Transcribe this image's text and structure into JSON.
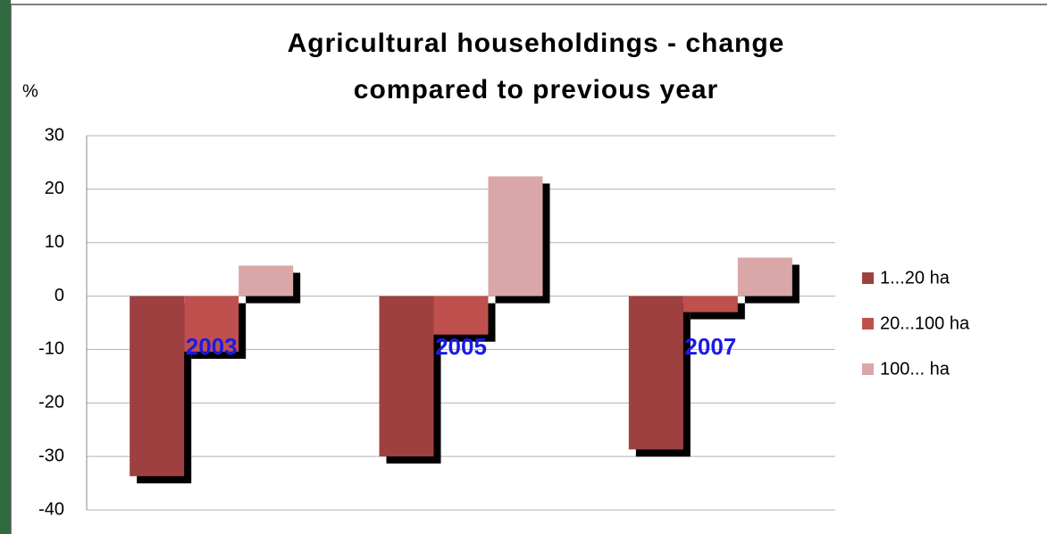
{
  "chart_data": {
    "type": "bar",
    "title": [
      "Agricultural householdings - change",
      "compared to previous year"
    ],
    "ylabel": "%",
    "categories": [
      "2003",
      "2005",
      "2007"
    ],
    "series": [
      {
        "name": "1...20 ha",
        "color": "#9e4040",
        "values": [
          -33.7,
          -30.0,
          -28.7
        ]
      },
      {
        "name": "20...100 ha",
        "color": "#c0504d",
        "values": [
          -10.4,
          -7.2,
          -3.0
        ]
      },
      {
        "name": "100... ha",
        "color": "#d9a7a7",
        "values": [
          5.7,
          22.4,
          7.2
        ]
      }
    ],
    "ylim": [
      -40,
      30
    ],
    "yticks": [
      -40,
      -30,
      -20,
      -10,
      0,
      10,
      20,
      30
    ],
    "grid": true,
    "legend": "right"
  }
}
